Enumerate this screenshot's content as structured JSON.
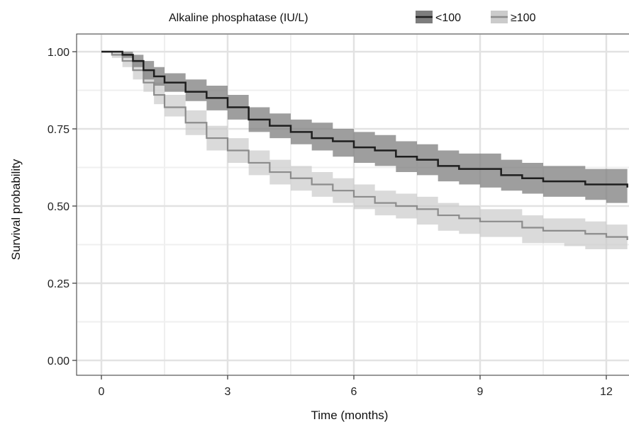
{
  "chart_data": {
    "type": "line",
    "subtype": "kaplan-meier survival curve with confidence bands",
    "title": "",
    "xlabel": "Time (months)",
    "ylabel": "Survival probability",
    "xlim": [
      -0.5,
      12.5
    ],
    "ylim": [
      -0.04,
      1.04
    ],
    "x_ticks": [
      0,
      3,
      6,
      9,
      12
    ],
    "x_tick_labels": [
      "0",
      "3",
      "6",
      "9",
      "12"
    ],
    "y_ticks": [
      0,
      0.25,
      0.5,
      0.75,
      1.0
    ],
    "y_tick_labels": [
      "0.00",
      "0.25",
      "0.50",
      "0.75",
      "1.00"
    ],
    "grid": true,
    "legend": {
      "title": "Alkaline phosphatase (IU/L)",
      "placement": "top",
      "entries": [
        "<100",
        "≥100"
      ]
    },
    "series": [
      {
        "name": "<100",
        "line_color": "#1e1e1e",
        "band_color": "#7d7d7d",
        "x": [
          0,
          0.25,
          0.5,
          0.75,
          1.0,
          1.25,
          1.5,
          2.0,
          2.5,
          3.0,
          3.5,
          4.0,
          4.5,
          5.0,
          5.5,
          6.0,
          6.5,
          7.0,
          7.5,
          8.0,
          8.5,
          9.0,
          9.5,
          10.0,
          10.5,
          11.0,
          11.5,
          12.0,
          12.5
        ],
        "y": [
          1.0,
          1.0,
          0.99,
          0.97,
          0.94,
          0.92,
          0.9,
          0.87,
          0.85,
          0.82,
          0.78,
          0.76,
          0.74,
          0.72,
          0.71,
          0.69,
          0.68,
          0.66,
          0.65,
          0.63,
          0.62,
          0.62,
          0.6,
          0.59,
          0.58,
          0.58,
          0.57,
          0.57,
          0.56
        ],
        "lower": [
          1.0,
          1.0,
          0.98,
          0.95,
          0.91,
          0.89,
          0.87,
          0.84,
          0.81,
          0.78,
          0.74,
          0.72,
          0.7,
          0.68,
          0.66,
          0.64,
          0.63,
          0.61,
          0.6,
          0.58,
          0.57,
          0.56,
          0.55,
          0.54,
          0.53,
          0.53,
          0.52,
          0.51,
          0.51
        ],
        "upper": [
          1.0,
          1.0,
          1.0,
          0.99,
          0.97,
          0.95,
          0.93,
          0.91,
          0.89,
          0.86,
          0.82,
          0.8,
          0.78,
          0.77,
          0.75,
          0.74,
          0.73,
          0.71,
          0.7,
          0.68,
          0.67,
          0.67,
          0.65,
          0.64,
          0.63,
          0.63,
          0.62,
          0.62,
          0.61
        ]
      },
      {
        "name": "≥100",
        "line_color": "#8c8c8c",
        "band_color": "#cbcbcb",
        "x": [
          0,
          0.25,
          0.5,
          0.75,
          1.0,
          1.25,
          1.5,
          2.0,
          2.5,
          3.0,
          3.5,
          4.0,
          4.5,
          5.0,
          5.5,
          6.0,
          6.5,
          7.0,
          7.5,
          8.0,
          8.5,
          9.0,
          9.5,
          10.0,
          10.5,
          11.0,
          11.5,
          12.0,
          12.5
        ],
        "y": [
          1.0,
          0.99,
          0.97,
          0.94,
          0.9,
          0.86,
          0.82,
          0.77,
          0.72,
          0.68,
          0.64,
          0.61,
          0.59,
          0.57,
          0.55,
          0.53,
          0.51,
          0.5,
          0.49,
          0.47,
          0.46,
          0.45,
          0.45,
          0.43,
          0.42,
          0.42,
          0.41,
          0.4,
          0.39
        ],
        "lower": [
          1.0,
          0.98,
          0.95,
          0.91,
          0.87,
          0.83,
          0.79,
          0.73,
          0.68,
          0.64,
          0.6,
          0.57,
          0.55,
          0.53,
          0.51,
          0.49,
          0.47,
          0.46,
          0.44,
          0.42,
          0.41,
          0.4,
          0.4,
          0.38,
          0.38,
          0.37,
          0.36,
          0.36,
          0.35
        ],
        "upper": [
          1.0,
          1.0,
          0.99,
          0.97,
          0.94,
          0.9,
          0.86,
          0.81,
          0.76,
          0.72,
          0.68,
          0.65,
          0.63,
          0.61,
          0.59,
          0.57,
          0.55,
          0.54,
          0.53,
          0.51,
          0.5,
          0.49,
          0.49,
          0.47,
          0.46,
          0.46,
          0.45,
          0.44,
          0.43
        ]
      }
    ]
  }
}
